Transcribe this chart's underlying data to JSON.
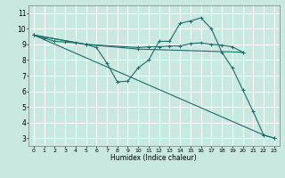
{
  "xlabel": "Humidex (Indice chaleur)",
  "xlim": [
    -0.5,
    23.5
  ],
  "ylim": [
    2.5,
    11.5
  ],
  "xticks": [
    0,
    1,
    2,
    3,
    4,
    5,
    6,
    7,
    8,
    9,
    10,
    11,
    12,
    13,
    14,
    15,
    16,
    17,
    18,
    19,
    20,
    21,
    22,
    23
  ],
  "yticks": [
    3,
    4,
    5,
    6,
    7,
    8,
    9,
    10,
    11
  ],
  "bg_color": "#c8e8e0",
  "grid_color": "#ffffff",
  "line_color": "#1a6e6a",
  "lines": [
    {
      "x": [
        0,
        1,
        2,
        3,
        4,
        5,
        6,
        7,
        8,
        9,
        10,
        11,
        12,
        13,
        14,
        15,
        16,
        17,
        18,
        19,
        20,
        21,
        22,
        23
      ],
      "y": [
        9.6,
        9.4,
        9.2,
        9.15,
        9.1,
        9.0,
        8.8,
        7.8,
        6.6,
        6.65,
        7.5,
        8.0,
        9.2,
        9.2,
        10.35,
        10.5,
        10.7,
        10.0,
        8.5,
        7.5,
        6.1,
        4.7,
        3.2,
        3.0
      ]
    },
    {
      "x": [
        0,
        5,
        10,
        11,
        12,
        13,
        14,
        15,
        16,
        17,
        18,
        19,
        20
      ],
      "y": [
        9.6,
        9.0,
        8.8,
        8.85,
        8.85,
        8.9,
        8.9,
        9.05,
        9.1,
        9.0,
        8.95,
        8.85,
        8.5
      ]
    },
    {
      "x": [
        0,
        5,
        10,
        20
      ],
      "y": [
        9.6,
        9.0,
        8.7,
        8.5
      ]
    },
    {
      "x": [
        0,
        22,
        23
      ],
      "y": [
        9.6,
        3.2,
        3.0
      ]
    }
  ]
}
